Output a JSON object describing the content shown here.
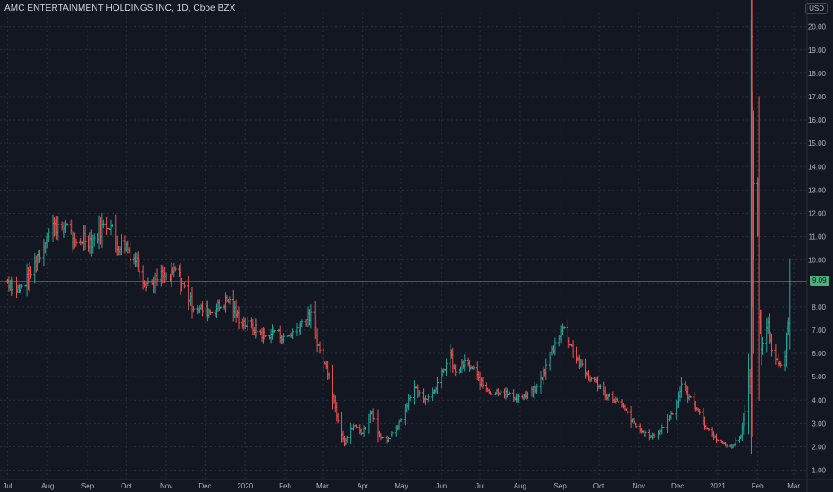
{
  "chart_data": {
    "type": "bar",
    "subtype": "ohlc",
    "title": "AMC ENTERTAINMENT HOLDINGS INC, 1D, Cboe BZX",
    "currency": "USD",
    "last_price": "9.09",
    "y_ticks": [
      "1.00",
      "2.00",
      "3.00",
      "4.00",
      "5.00",
      "6.00",
      "7.00",
      "8.00",
      "9.00",
      "10.00",
      "11.00",
      "12.00",
      "13.00",
      "14.00",
      "15.00",
      "16.00",
      "17.00",
      "18.00",
      "19.00",
      "20.00"
    ],
    "ylim": [
      0.6,
      20.6
    ],
    "x_ticks": [
      "Jul",
      "Aug",
      "Sep",
      "Oct",
      "Nov",
      "Dec",
      "2020",
      "Feb",
      "Mar",
      "Apr",
      "May",
      "Jun",
      "Jul",
      "Aug",
      "Sep",
      "Oct",
      "Nov",
      "Dec",
      "2021",
      "Feb",
      "Mar"
    ],
    "grid": true,
    "colors": {
      "up": "#26a69a",
      "down": "#ef5350",
      "background": "#131722",
      "grid": "#2a2e39",
      "price_line": "#4caf7a"
    },
    "close_series": [
      [
        "2019-07-01",
        9.1
      ],
      [
        "2019-07-10",
        8.7
      ],
      [
        "2019-07-18",
        9.3
      ],
      [
        "2019-07-25",
        10.2
      ],
      [
        "2019-08-01",
        11.0
      ],
      [
        "2019-08-07",
        11.6
      ],
      [
        "2019-08-12",
        11.1
      ],
      [
        "2019-08-16",
        11.7
      ],
      [
        "2019-08-22",
        10.5
      ],
      [
        "2019-08-29",
        11.0
      ],
      [
        "2019-09-05",
        10.8
      ],
      [
        "2019-09-12",
        11.4
      ],
      [
        "2019-09-18",
        11.6
      ],
      [
        "2019-09-24",
        10.6
      ],
      [
        "2019-09-30",
        10.7
      ],
      [
        "2019-10-04",
        10.3
      ],
      [
        "2019-10-10",
        9.9
      ],
      [
        "2019-10-15",
        9.1
      ],
      [
        "2019-10-21",
        9.0
      ],
      [
        "2019-10-28",
        9.3
      ],
      [
        "2019-11-04",
        9.2
      ],
      [
        "2019-11-08",
        9.6
      ],
      [
        "2019-11-14",
        8.9
      ],
      [
        "2019-11-21",
        8.1
      ],
      [
        "2019-11-27",
        7.9
      ],
      [
        "2019-12-05",
        7.8
      ],
      [
        "2019-12-12",
        8.0
      ],
      [
        "2019-12-19",
        8.3
      ],
      [
        "2019-12-27",
        7.5
      ],
      [
        "2020-01-03",
        7.2
      ],
      [
        "2020-01-10",
        7.0
      ],
      [
        "2020-01-17",
        6.7
      ],
      [
        "2020-01-24",
        7.0
      ],
      [
        "2020-01-31",
        6.6
      ],
      [
        "2020-02-07",
        6.9
      ],
      [
        "2020-02-14",
        7.3
      ],
      [
        "2020-02-21",
        7.6
      ],
      [
        "2020-02-28",
        6.1
      ],
      [
        "2020-03-06",
        5.1
      ],
      [
        "2020-03-12",
        3.4
      ],
      [
        "2020-03-18",
        2.2
      ],
      [
        "2020-03-25",
        2.9
      ],
      [
        "2020-04-01",
        2.6
      ],
      [
        "2020-04-08",
        3.5
      ],
      [
        "2020-04-14",
        2.5
      ],
      [
        "2020-04-20",
        2.2
      ],
      [
        "2020-04-27",
        2.8
      ],
      [
        "2020-05-04",
        3.6
      ],
      [
        "2020-05-11",
        4.6
      ],
      [
        "2020-05-18",
        4.0
      ],
      [
        "2020-05-26",
        4.4
      ],
      [
        "2020-06-02",
        5.1
      ],
      [
        "2020-06-08",
        6.0
      ],
      [
        "2020-06-12",
        5.1
      ],
      [
        "2020-06-19",
        5.6
      ],
      [
        "2020-06-26",
        5.3
      ],
      [
        "2020-07-02",
        4.7
      ],
      [
        "2020-07-10",
        4.3
      ],
      [
        "2020-07-17",
        4.4
      ],
      [
        "2020-07-24",
        4.2
      ],
      [
        "2020-07-31",
        4.1
      ],
      [
        "2020-08-07",
        4.2
      ],
      [
        "2020-08-14",
        4.5
      ],
      [
        "2020-08-21",
        5.4
      ],
      [
        "2020-08-28",
        6.4
      ],
      [
        "2020-09-03",
        7.1
      ],
      [
        "2020-09-09",
        6.4
      ],
      [
        "2020-09-16",
        5.6
      ],
      [
        "2020-09-23",
        5.0
      ],
      [
        "2020-09-30",
        4.7
      ],
      [
        "2020-10-07",
        4.2
      ],
      [
        "2020-10-14",
        4.0
      ],
      [
        "2020-10-21",
        3.6
      ],
      [
        "2020-10-28",
        3.0
      ],
      [
        "2020-11-04",
        2.6
      ],
      [
        "2020-11-11",
        2.4
      ],
      [
        "2020-11-18",
        2.7
      ],
      [
        "2020-11-25",
        3.3
      ],
      [
        "2020-12-01",
        3.9
      ],
      [
        "2020-12-04",
        4.7
      ],
      [
        "2020-12-10",
        4.1
      ],
      [
        "2020-12-17",
        3.6
      ],
      [
        "2020-12-22",
        2.9
      ],
      [
        "2020-12-30",
        2.4
      ],
      [
        "2021-01-06",
        2.1
      ],
      [
        "2021-01-12",
        2.0
      ],
      [
        "2021-01-19",
        2.5
      ],
      [
        "2021-01-22",
        3.5
      ],
      [
        "2021-01-25",
        4.9
      ],
      [
        "2021-01-26",
        4.5
      ],
      [
        "2021-01-27",
        19.9
      ],
      [
        "2021-01-28",
        8.6
      ],
      [
        "2021-01-29",
        13.3
      ],
      [
        "2021-02-01",
        13.3
      ],
      [
        "2021-02-02",
        7.8
      ],
      [
        "2021-02-04",
        6.3
      ],
      [
        "2021-02-09",
        7.5
      ],
      [
        "2021-02-12",
        6.0
      ],
      [
        "2021-02-17",
        5.5
      ],
      [
        "2021-02-22",
        5.7
      ],
      [
        "2021-02-25",
        7.5
      ],
      [
        "2021-02-26",
        9.09
      ]
    ]
  }
}
